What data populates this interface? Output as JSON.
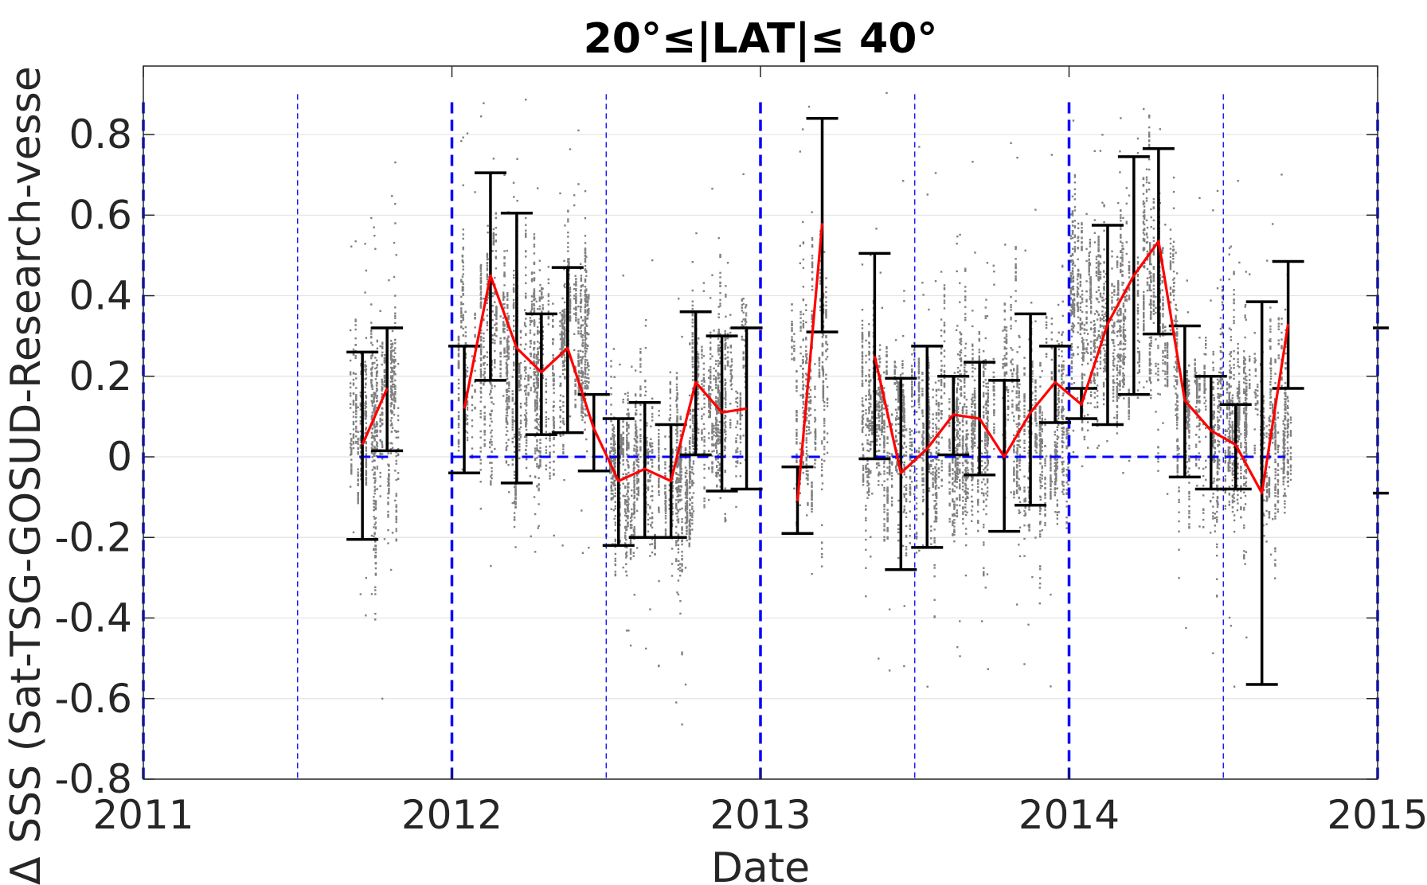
{
  "chart_data": {
    "type": "scatter",
    "title": "20°≤|LAT|≤ 40°",
    "xlabel": "Date",
    "ylabel": "Δ SSS (Sat-TSG-GOSUD-Research-vesse",
    "xlim": [
      2011,
      2015
    ],
    "ylim": [
      -0.8,
      0.97
    ],
    "xticks": [
      "2011",
      "2012",
      "2013",
      "2014",
      "2015"
    ],
    "yticks": [
      "0.8",
      "0.6",
      "0.4",
      "0.2",
      "0",
      "-0.2",
      "-0.4",
      "-0.6",
      "-0.8"
    ],
    "grid": "horizontal",
    "colors": {
      "scatter": "#808080",
      "mean": "#ff0000",
      "errorbar": "#000000",
      "reference": "#0000ff"
    },
    "year_lines": [
      2011,
      2012,
      2013,
      2014,
      2015
    ],
    "half_year_lines": [
      2011.5,
      2012.5,
      2013.5,
      2014.5
    ],
    "zero_line_segments": [
      [
        2011.7,
        2011.8
      ],
      [
        2012.0,
        2012.95
      ],
      [
        2013.1,
        2013.2
      ],
      [
        2013.37,
        2014.7
      ]
    ],
    "series": [
      {
        "kind": "mean_with_error",
        "segments": [
          [
            {
              "x": 2011.71,
              "mean": 0.03,
              "low": -0.205,
              "high": 0.26
            },
            {
              "x": 2011.79,
              "mean": 0.17,
              "low": 0.015,
              "high": 0.32
            }
          ],
          [
            {
              "x": 2012.04,
              "mean": 0.12,
              "low": -0.04,
              "high": 0.275
            },
            {
              "x": 2012.125,
              "mean": 0.45,
              "low": 0.19,
              "high": 0.705
            },
            {
              "x": 2012.21,
              "mean": 0.27,
              "low": -0.065,
              "high": 0.605
            },
            {
              "x": 2012.29,
              "mean": 0.21,
              "low": 0.055,
              "high": 0.355
            },
            {
              "x": 2012.375,
              "mean": 0.27,
              "low": 0.06,
              "high": 0.47
            },
            {
              "x": 2012.46,
              "mean": 0.07,
              "low": -0.035,
              "high": 0.155
            },
            {
              "x": 2012.54,
              "mean": -0.06,
              "low": -0.22,
              "high": 0.095
            },
            {
              "x": 2012.625,
              "mean": -0.03,
              "low": -0.2,
              "high": 0.135
            },
            {
              "x": 2012.71,
              "mean": -0.06,
              "low": -0.2,
              "high": 0.08
            },
            {
              "x": 2012.79,
              "mean": 0.185,
              "low": 0.005,
              "high": 0.36
            },
            {
              "x": 2012.875,
              "mean": 0.11,
              "low": -0.085,
              "high": 0.3
            },
            {
              "x": 2012.955,
              "mean": 0.12,
              "low": -0.08,
              "high": 0.32
            }
          ],
          [
            {
              "x": 2013.12,
              "mean": -0.11,
              "low": -0.19,
              "high": -0.025
            },
            {
              "x": 2013.2,
              "mean": 0.58,
              "low": 0.31,
              "high": 0.84
            }
          ],
          [
            {
              "x": 2013.37,
              "mean": 0.25,
              "low": -0.005,
              "high": 0.505
            },
            {
              "x": 2013.455,
              "mean": -0.04,
              "low": -0.28,
              "high": 0.195
            },
            {
              "x": 2013.54,
              "mean": 0.02,
              "low": -0.225,
              "high": 0.275
            },
            {
              "x": 2013.625,
              "mean": 0.105,
              "low": 0.005,
              "high": 0.2
            },
            {
              "x": 2013.71,
              "mean": 0.095,
              "low": -0.045,
              "high": 0.235
            },
            {
              "x": 2013.79,
              "mean": 0.0,
              "low": -0.185,
              "high": 0.19
            },
            {
              "x": 2013.875,
              "mean": 0.11,
              "low": -0.12,
              "high": 0.355
            },
            {
              "x": 2013.955,
              "mean": 0.185,
              "low": 0.085,
              "high": 0.275
            },
            {
              "x": 2014.04,
              "mean": 0.13,
              "low": 0.095,
              "high": 0.17
            },
            {
              "x": 2014.125,
              "mean": 0.33,
              "low": 0.08,
              "high": 0.575
            },
            {
              "x": 2014.21,
              "mean": 0.45,
              "low": 0.155,
              "high": 0.745
            },
            {
              "x": 2014.29,
              "mean": 0.535,
              "low": 0.305,
              "high": 0.765
            },
            {
              "x": 2014.375,
              "mean": 0.14,
              "low": -0.05,
              "high": 0.325
            },
            {
              "x": 2014.46,
              "mean": 0.065,
              "low": -0.08,
              "high": 0.2
            },
            {
              "x": 2014.54,
              "mean": 0.03,
              "low": -0.08,
              "high": 0.13
            },
            {
              "x": 2014.625,
              "mean": -0.09,
              "low": -0.565,
              "high": 0.385
            },
            {
              "x": 2014.71,
              "mean": 0.33,
              "low": 0.17,
              "high": 0.485
            }
          ]
        ]
      },
      {
        "kind": "scatter_spread",
        "clusters": [
          {
            "x0": 2011.67,
            "x1": 2011.83,
            "ymin": -0.79,
            "ymax": 0.75,
            "center": 0.06,
            "spread": 0.2
          },
          {
            "x0": 2012.02,
            "x1": 2012.45,
            "ymin": -0.28,
            "ymax": 0.97,
            "center": 0.25,
            "spread": 0.22
          },
          {
            "x0": 2012.5,
            "x1": 2012.78,
            "ymin": -0.74,
            "ymax": 0.91,
            "center": -0.05,
            "spread": 0.16
          },
          {
            "x0": 2012.78,
            "x1": 2012.96,
            "ymin": -0.2,
            "ymax": 0.92,
            "center": 0.15,
            "spread": 0.16
          },
          {
            "x0": 2013.1,
            "x1": 2013.22,
            "ymin": -0.3,
            "ymax": 0.88,
            "center": 0.2,
            "spread": 0.3
          },
          {
            "x0": 2013.33,
            "x1": 2014.0,
            "ymin": -0.62,
            "ymax": 0.91,
            "center": 0.06,
            "spread": 0.2
          },
          {
            "x0": 2014.0,
            "x1": 2014.35,
            "ymin": -0.1,
            "ymax": 0.97,
            "center": 0.35,
            "spread": 0.22
          },
          {
            "x0": 2014.35,
            "x1": 2014.72,
            "ymin": -0.58,
            "ymax": 0.8,
            "center": 0.08,
            "spread": 0.18
          }
        ]
      }
    ],
    "edge_markers": [
      {
        "x": 2015.0,
        "values": [
          0.32,
          -0.09
        ]
      }
    ]
  }
}
